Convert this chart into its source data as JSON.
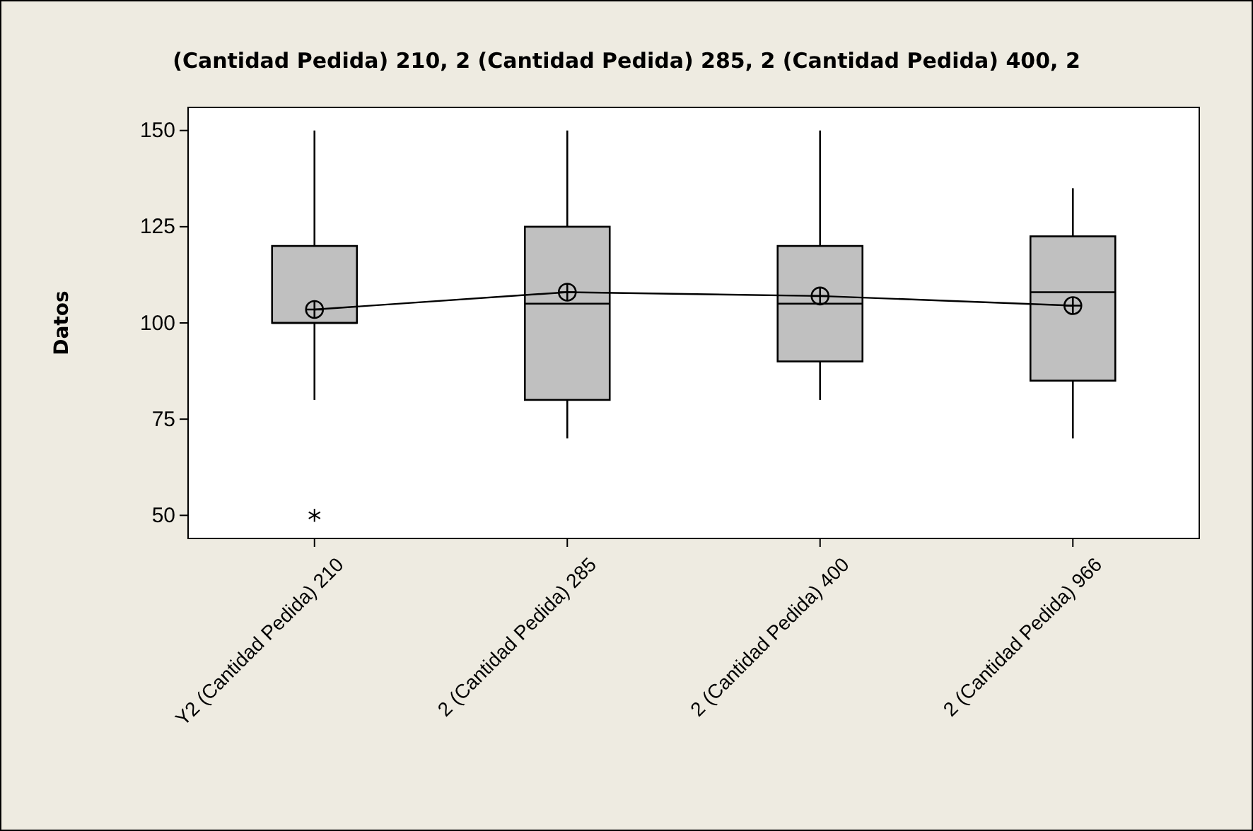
{
  "chart_data": {
    "type": "box",
    "title": "(Cantidad Pedida) 210, 2 (Cantidad Pedida) 285, 2 (Cantidad Pedida) 400, 2",
    "ylabel": "Datos",
    "categories": [
      "Y2 (Cantidad Pedida) 210",
      "2 (Cantidad Pedida) 285",
      "2 (Cantidad Pedida) 400",
      "2 (Cantidad Pedida) 966"
    ],
    "boxes": [
      {
        "low": 80,
        "q1": 100,
        "median": 100,
        "q3": 120,
        "high": 150,
        "mean": 103.5,
        "outliers": [
          50
        ]
      },
      {
        "low": 70,
        "q1": 80,
        "median": 105,
        "q3": 125,
        "high": 150,
        "mean": 108
      },
      {
        "low": 80,
        "q1": 90,
        "median": 105,
        "q3": 120,
        "high": 150,
        "mean": 107
      },
      {
        "low": 70,
        "q1": 85,
        "median": 108,
        "q3": 122.5,
        "high": 135,
        "mean": 104.5
      }
    ],
    "series": [
      {
        "type": "line",
        "color": "#000000",
        "values": [
          103.5,
          108,
          107,
          104.5
        ]
      }
    ],
    "color": "#c0c0c0",
    "marker": "none",
    "grid": false,
    "ylim": [
      44,
      156
    ],
    "yticks": [
      50,
      75,
      100,
      125,
      150
    ]
  }
}
